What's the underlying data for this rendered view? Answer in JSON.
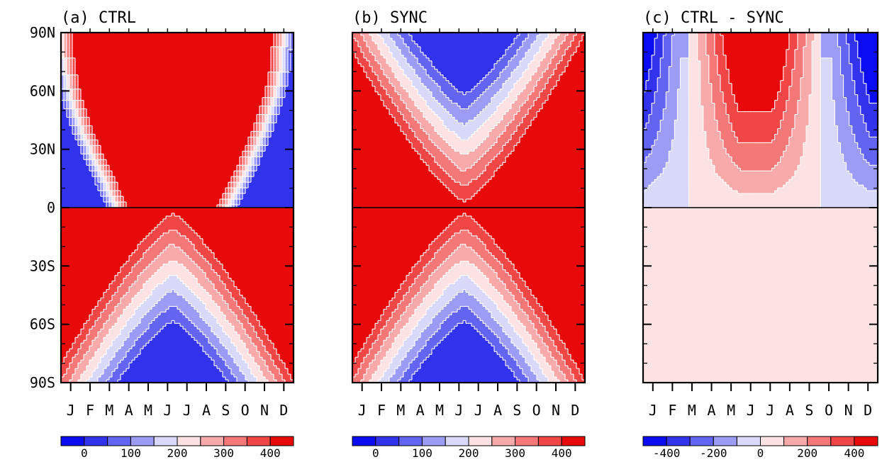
{
  "figure": {
    "background": "#ffffff",
    "contour_line_color": "#ffffff"
  },
  "chart_data": [
    {
      "type": "heatmap",
      "panel_id": "a",
      "title": "(a) CTRL",
      "x": {
        "ticks": [
          "J",
          "F",
          "M",
          "A",
          "M",
          "J",
          "J",
          "A",
          "S",
          "O",
          "N",
          "D"
        ],
        "range": [
          "Jan",
          "Dec"
        ]
      },
      "y": {
        "ticks": [
          "90N",
          "60N",
          "30N",
          "0",
          "30S",
          "60S",
          "90S"
        ],
        "range": [
          90,
          -90
        ]
      },
      "field": "ctrl",
      "contour_levels": [
        0,
        50,
        100,
        150,
        200,
        250,
        300,
        350,
        400
      ],
      "colorbar": {
        "labels": [
          "0",
          "100",
          "200",
          "300",
          "400"
        ],
        "colors": [
          "#0c0cf2",
          "#3333ee",
          "#6464f2",
          "#9c9cf6",
          "#d8d8f8",
          "#fce2e2",
          "#f8aaaa",
          "#f47878",
          "#f04646",
          "#e80a0a"
        ]
      },
      "description_data": {
        "ctrl_nh_low_region_months": [
          "Jan",
          "Feb",
          "Nov",
          "Dec"
        ],
        "ctrl_sh_low_region_months": [
          "Apr",
          "May",
          "Jun",
          "Jul",
          "Aug",
          "Sep"
        ]
      }
    },
    {
      "type": "heatmap",
      "panel_id": "b",
      "title": "(b) SYNC",
      "x": {
        "ticks": [
          "J",
          "F",
          "M",
          "A",
          "M",
          "J",
          "J",
          "A",
          "S",
          "O",
          "N",
          "D"
        ],
        "range": [
          "Jan",
          "Dec"
        ]
      },
      "y": {
        "ticks": [
          "90N",
          "60N",
          "30N",
          "0",
          "30S",
          "60S",
          "90S"
        ],
        "range": [
          90,
          -90
        ]
      },
      "field": "sync",
      "contour_levels": [
        0,
        50,
        100,
        150,
        200,
        250,
        300,
        350,
        400
      ],
      "colorbar": {
        "labels": [
          "0",
          "100",
          "200",
          "300",
          "400"
        ],
        "colors": [
          "#0c0cf2",
          "#3333ee",
          "#6464f2",
          "#9c9cf6",
          "#d8d8f8",
          "#fce2e2",
          "#f8aaaa",
          "#f47878",
          "#f04646",
          "#e80a0a"
        ]
      }
    },
    {
      "type": "heatmap",
      "panel_id": "c",
      "title": "(c) CTRL - SYNC",
      "x": {
        "ticks": [
          "J",
          "F",
          "M",
          "A",
          "M",
          "J",
          "J",
          "A",
          "S",
          "O",
          "N",
          "D"
        ],
        "range": [
          "Jan",
          "Dec"
        ]
      },
      "y": {
        "ticks": [
          "90N",
          "60N",
          "30N",
          "0",
          "30S",
          "60S",
          "90S"
        ],
        "range": [
          90,
          -90
        ]
      },
      "field": "diff",
      "contour_levels": [
        -400,
        -300,
        -200,
        -100,
        0,
        100,
        200,
        300,
        400
      ],
      "colorbar": {
        "labels": [
          "-400",
          "-200",
          "0",
          "200",
          "400"
        ],
        "colors": [
          "#0c0cf2",
          "#3333ee",
          "#6464f2",
          "#9c9cf6",
          "#d8d8f8",
          "#fce2e2",
          "#f8aaaa",
          "#f47878",
          "#f04646",
          "#e80a0a"
        ]
      }
    }
  ]
}
